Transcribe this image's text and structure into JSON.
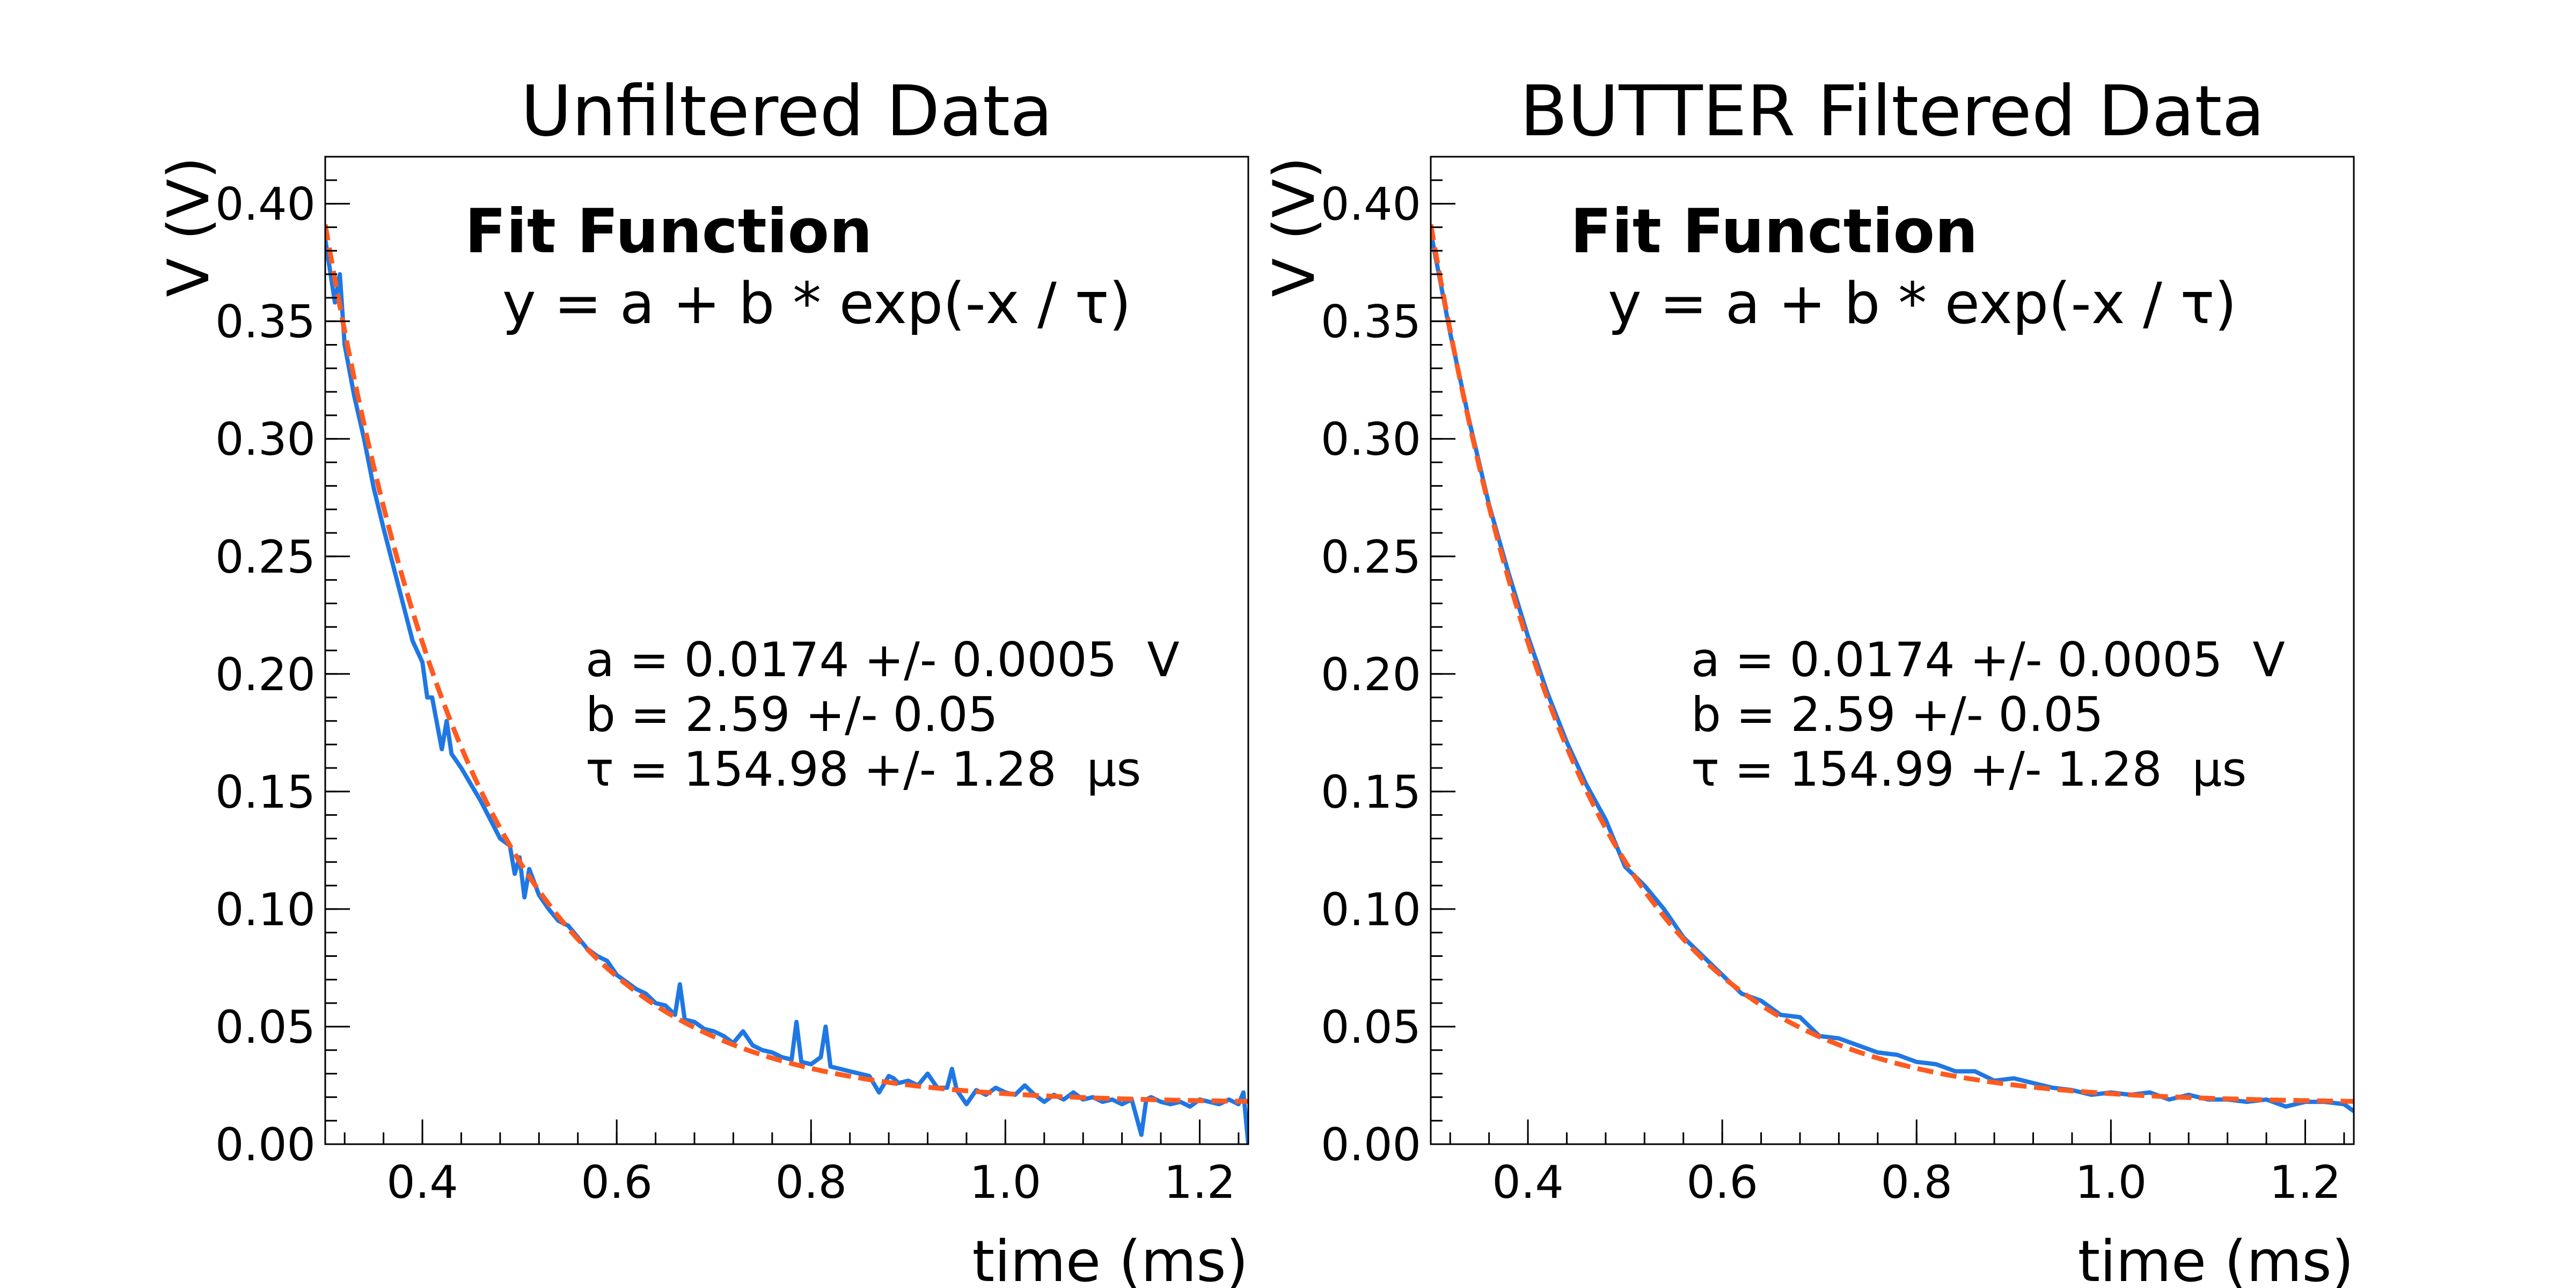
{
  "chart_data": [
    {
      "type": "line",
      "title": "Unfiltered Data",
      "xlabel": "time (ms)",
      "ylabel": "V (V)",
      "xlim": [
        0.3,
        1.25
      ],
      "ylim": [
        0.0,
        0.42
      ],
      "xticks": [
        0.4,
        0.6,
        0.8,
        1.0,
        1.2
      ],
      "xtick_labels": [
        "0.4",
        "0.6",
        "0.8",
        "1.0",
        "1.2"
      ],
      "yticks": [
        0.0,
        0.05,
        0.1,
        0.15,
        0.2,
        0.25,
        0.3,
        0.35,
        0.4
      ],
      "ytick_labels": [
        "0.00",
        "0.05",
        "0.10",
        "0.15",
        "0.20",
        "0.25",
        "0.30",
        "0.35",
        "0.40"
      ],
      "grid": false,
      "annotations": {
        "heading": "Fit Function",
        "formula": "y = a + b * exp(-x / τ)",
        "params": [
          "a = 0.0174 +/- 0.0005  V",
          "b = 2.59 +/- 0.05",
          "τ = 154.98 +/- 1.28  µs"
        ]
      },
      "series": [
        {
          "style": "solid",
          "color": "#1f77e4",
          "x": [
            0.3,
            0.31,
            0.315,
            0.32,
            0.33,
            0.34,
            0.35,
            0.36,
            0.37,
            0.38,
            0.39,
            0.4,
            0.405,
            0.41,
            0.42,
            0.425,
            0.43,
            0.44,
            0.45,
            0.46,
            0.47,
            0.48,
            0.49,
            0.495,
            0.5,
            0.505,
            0.51,
            0.52,
            0.53,
            0.54,
            0.55,
            0.56,
            0.57,
            0.58,
            0.59,
            0.6,
            0.61,
            0.62,
            0.63,
            0.64,
            0.65,
            0.66,
            0.665,
            0.67,
            0.68,
            0.69,
            0.7,
            0.71,
            0.72,
            0.73,
            0.74,
            0.75,
            0.76,
            0.77,
            0.78,
            0.785,
            0.79,
            0.8,
            0.81,
            0.815,
            0.82,
            0.83,
            0.84,
            0.85,
            0.86,
            0.87,
            0.88,
            0.885,
            0.89,
            0.9,
            0.91,
            0.92,
            0.93,
            0.94,
            0.945,
            0.95,
            0.96,
            0.97,
            0.98,
            0.99,
            1.0,
            1.01,
            1.02,
            1.03,
            1.04,
            1.05,
            1.06,
            1.07,
            1.08,
            1.09,
            1.1,
            1.11,
            1.12,
            1.13,
            1.14,
            1.145,
            1.15,
            1.16,
            1.17,
            1.18,
            1.19,
            1.2,
            1.21,
            1.22,
            1.23,
            1.24,
            1.245,
            1.25
          ],
          "y": [
            0.385,
            0.358,
            0.37,
            0.34,
            0.318,
            0.3,
            0.279,
            0.262,
            0.246,
            0.23,
            0.214,
            0.205,
            0.19,
            0.19,
            0.168,
            0.18,
            0.166,
            0.16,
            0.153,
            0.146,
            0.138,
            0.13,
            0.127,
            0.115,
            0.122,
            0.105,
            0.117,
            0.106,
            0.1,
            0.095,
            0.093,
            0.088,
            0.083,
            0.08,
            0.078,
            0.072,
            0.069,
            0.066,
            0.064,
            0.06,
            0.059,
            0.055,
            0.068,
            0.053,
            0.052,
            0.049,
            0.048,
            0.046,
            0.043,
            0.048,
            0.042,
            0.04,
            0.039,
            0.037,
            0.036,
            0.052,
            0.035,
            0.034,
            0.037,
            0.05,
            0.033,
            0.032,
            0.031,
            0.03,
            0.029,
            0.022,
            0.029,
            0.028,
            0.026,
            0.027,
            0.025,
            0.03,
            0.024,
            0.024,
            0.032,
            0.023,
            0.017,
            0.023,
            0.021,
            0.024,
            0.022,
            0.021,
            0.025,
            0.021,
            0.018,
            0.021,
            0.019,
            0.022,
            0.019,
            0.02,
            0.018,
            0.019,
            0.017,
            0.019,
            0.004,
            0.019,
            0.02,
            0.018,
            0.017,
            0.018,
            0.016,
            0.019,
            0.018,
            0.017,
            0.019,
            0.017,
            0.022,
            0.0
          ]
        },
        {
          "style": "dashed",
          "color": "#ff5a1f",
          "fit": {
            "a": 0.0174,
            "b": 2.59,
            "tau_ms": 0.15498
          }
        }
      ]
    },
    {
      "type": "line",
      "title": "BUTTER Filtered Data",
      "xlabel": "time (ms)",
      "ylabel": "V (V)",
      "xlim": [
        0.3,
        1.25
      ],
      "ylim": [
        0.0,
        0.42
      ],
      "xticks": [
        0.4,
        0.6,
        0.8,
        1.0,
        1.2
      ],
      "xtick_labels": [
        "0.4",
        "0.6",
        "0.8",
        "1.0",
        "1.2"
      ],
      "yticks": [
        0.0,
        0.05,
        0.1,
        0.15,
        0.2,
        0.25,
        0.3,
        0.35,
        0.4
      ],
      "ytick_labels": [
        "0.00",
        "0.05",
        "0.10",
        "0.15",
        "0.20",
        "0.25",
        "0.30",
        "0.35",
        "0.40"
      ],
      "grid": false,
      "annotations": {
        "heading": "Fit Function",
        "formula": "y = a + b * exp(-x / τ)",
        "params": [
          "a = 0.0174 +/- 0.0005  V",
          "b = 2.59 +/- 0.05",
          "τ = 154.99 +/- 1.28  µs"
        ]
      },
      "series": [
        {
          "style": "solid",
          "color": "#1f77e4",
          "x": [
            0.3,
            0.32,
            0.34,
            0.36,
            0.38,
            0.4,
            0.42,
            0.44,
            0.46,
            0.48,
            0.5,
            0.52,
            0.54,
            0.56,
            0.58,
            0.6,
            0.62,
            0.64,
            0.66,
            0.68,
            0.7,
            0.72,
            0.74,
            0.76,
            0.78,
            0.8,
            0.82,
            0.84,
            0.86,
            0.88,
            0.9,
            0.92,
            0.94,
            0.96,
            0.98,
            1.0,
            1.02,
            1.04,
            1.06,
            1.08,
            1.1,
            1.12,
            1.14,
            1.16,
            1.18,
            1.2,
            1.22,
            1.24,
            1.25
          ],
          "y": [
            0.388,
            0.345,
            0.307,
            0.272,
            0.243,
            0.216,
            0.192,
            0.171,
            0.153,
            0.138,
            0.118,
            0.11,
            0.1,
            0.088,
            0.08,
            0.072,
            0.064,
            0.061,
            0.055,
            0.054,
            0.046,
            0.045,
            0.042,
            0.039,
            0.038,
            0.035,
            0.034,
            0.031,
            0.031,
            0.027,
            0.028,
            0.026,
            0.024,
            0.023,
            0.021,
            0.022,
            0.021,
            0.022,
            0.019,
            0.021,
            0.019,
            0.019,
            0.018,
            0.019,
            0.016,
            0.018,
            0.018,
            0.017,
            0.014
          ]
        },
        {
          "style": "dashed",
          "color": "#ff5a1f",
          "fit": {
            "a": 0.0174,
            "b": 2.59,
            "tau_ms": 0.15499
          }
        }
      ]
    }
  ]
}
